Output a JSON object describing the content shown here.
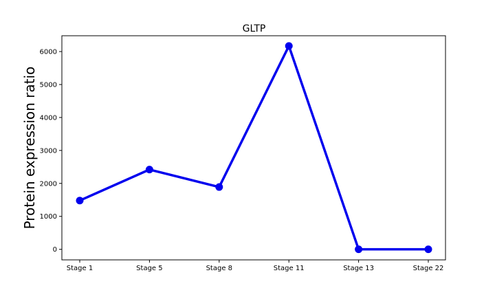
{
  "chart_data": {
    "type": "line",
    "title": "GLTP",
    "xlabel": "",
    "ylabel": "Protein expression ratio",
    "categories": [
      "Stage 1",
      "Stage 5",
      "Stage 8",
      "Stage 11",
      "Stage 13",
      "Stage 22"
    ],
    "series": [
      {
        "values": [
          1480,
          2420,
          1890,
          6170,
          0,
          0
        ],
        "color": "#0000ee"
      }
    ],
    "ylim": [
      -320,
      6480
    ],
    "yticks": [
      0,
      1000,
      2000,
      3000,
      4000,
      5000,
      6000
    ],
    "grid": false,
    "legend": "none"
  }
}
